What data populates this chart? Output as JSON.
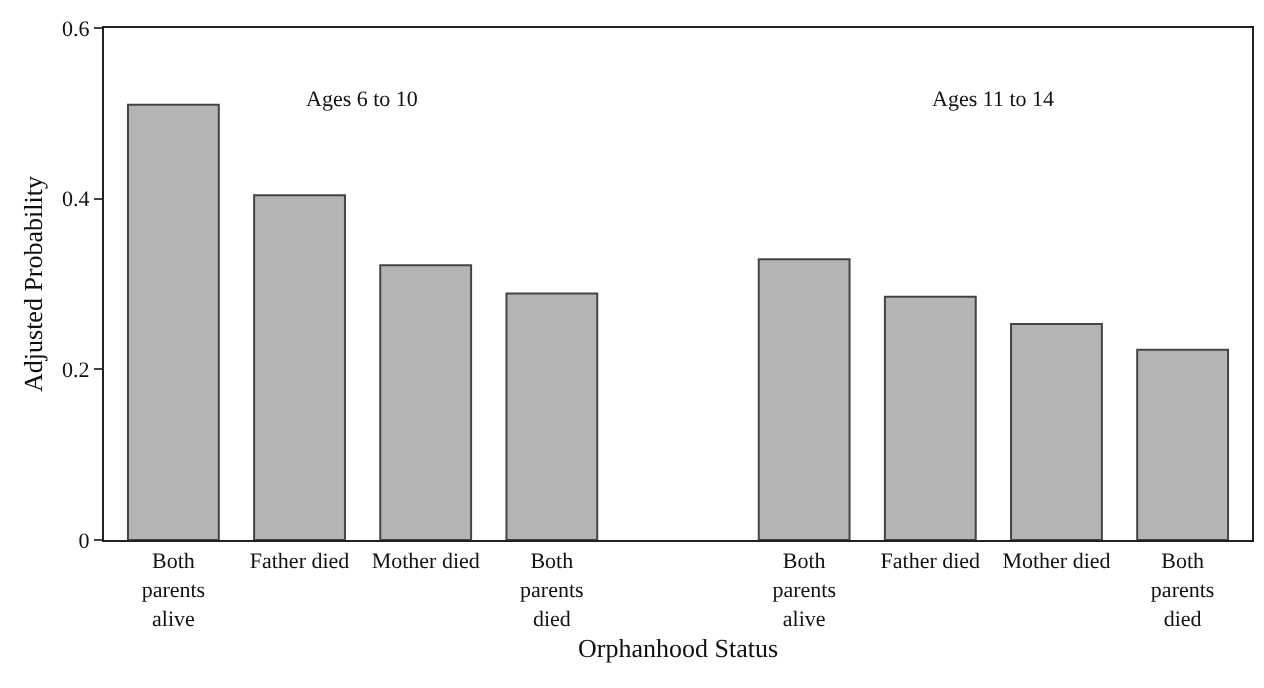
{
  "chart_data": {
    "type": "bar",
    "ylabel": "Adjusted Probability",
    "xlabel": "Orphanhood Status",
    "annotations": [
      "Ages 6 to 10",
      "Ages 11 to 14"
    ],
    "categories": [
      "Both parents alive",
      "Father died",
      "Mother died",
      "Both parents died",
      null,
      "Both parents alive",
      "Father died",
      "Mother died",
      "Both parents died"
    ],
    "values": [
      0.51,
      0.404,
      0.322,
      0.289,
      null,
      0.329,
      0.285,
      0.253,
      0.223
    ],
    "color": "#b4b4b4",
    "ylim": [
      0,
      0.6
    ],
    "yticks": [
      0,
      0.2,
      0.4,
      0.6
    ],
    "grid": false
  }
}
